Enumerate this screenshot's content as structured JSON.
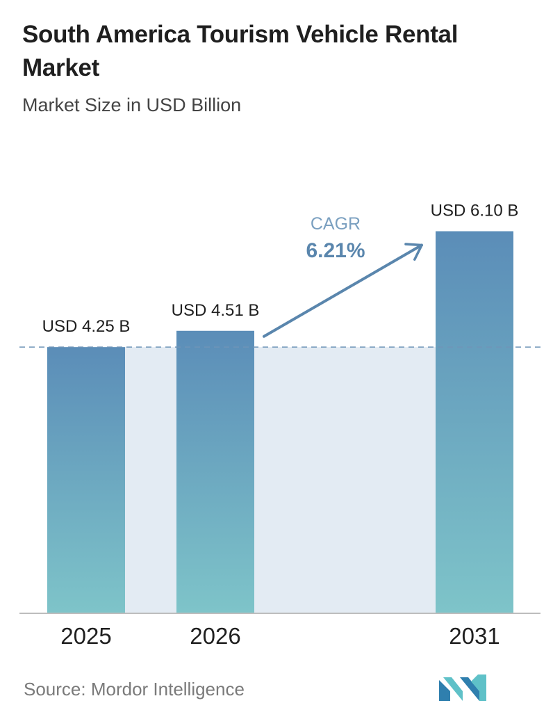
{
  "header": {
    "title": "South America Tourism Vehicle Rental Market",
    "subtitle": "Market Size in USD Billion"
  },
  "chart_data": {
    "type": "bar",
    "title": "South America Tourism Vehicle Rental Market",
    "subtitle": "Market Size in USD Billion",
    "categories": [
      "2025",
      "2026",
      "2031"
    ],
    "values": [
      4.25,
      4.51,
      6.1
    ],
    "value_labels": [
      "USD 4.25 B",
      "USD 4.51 B",
      "USD 6.10 B"
    ],
    "unit": "USD Billion",
    "ylim": [
      0,
      6.55
    ],
    "grid": false,
    "legend": "none",
    "reference_line": {
      "value": 4.25,
      "style": "dashed"
    },
    "cagr": {
      "label": "CAGR",
      "value": "6.21%"
    },
    "colors": {
      "bar_top": "#5b8db8",
      "bar_bottom": "#7ec4c9",
      "band": "#e3ebf3",
      "reference_line": "#6f95b8",
      "arrow": "#5a86ad",
      "cagr_label": "#7ba0c0",
      "cagr_value": "#5a86ad",
      "axis": "#bdbdbd"
    }
  },
  "footer": {
    "source": "Source: Mordor Intelligence",
    "logo_icon": "mordor-intelligence-logo-icon"
  }
}
